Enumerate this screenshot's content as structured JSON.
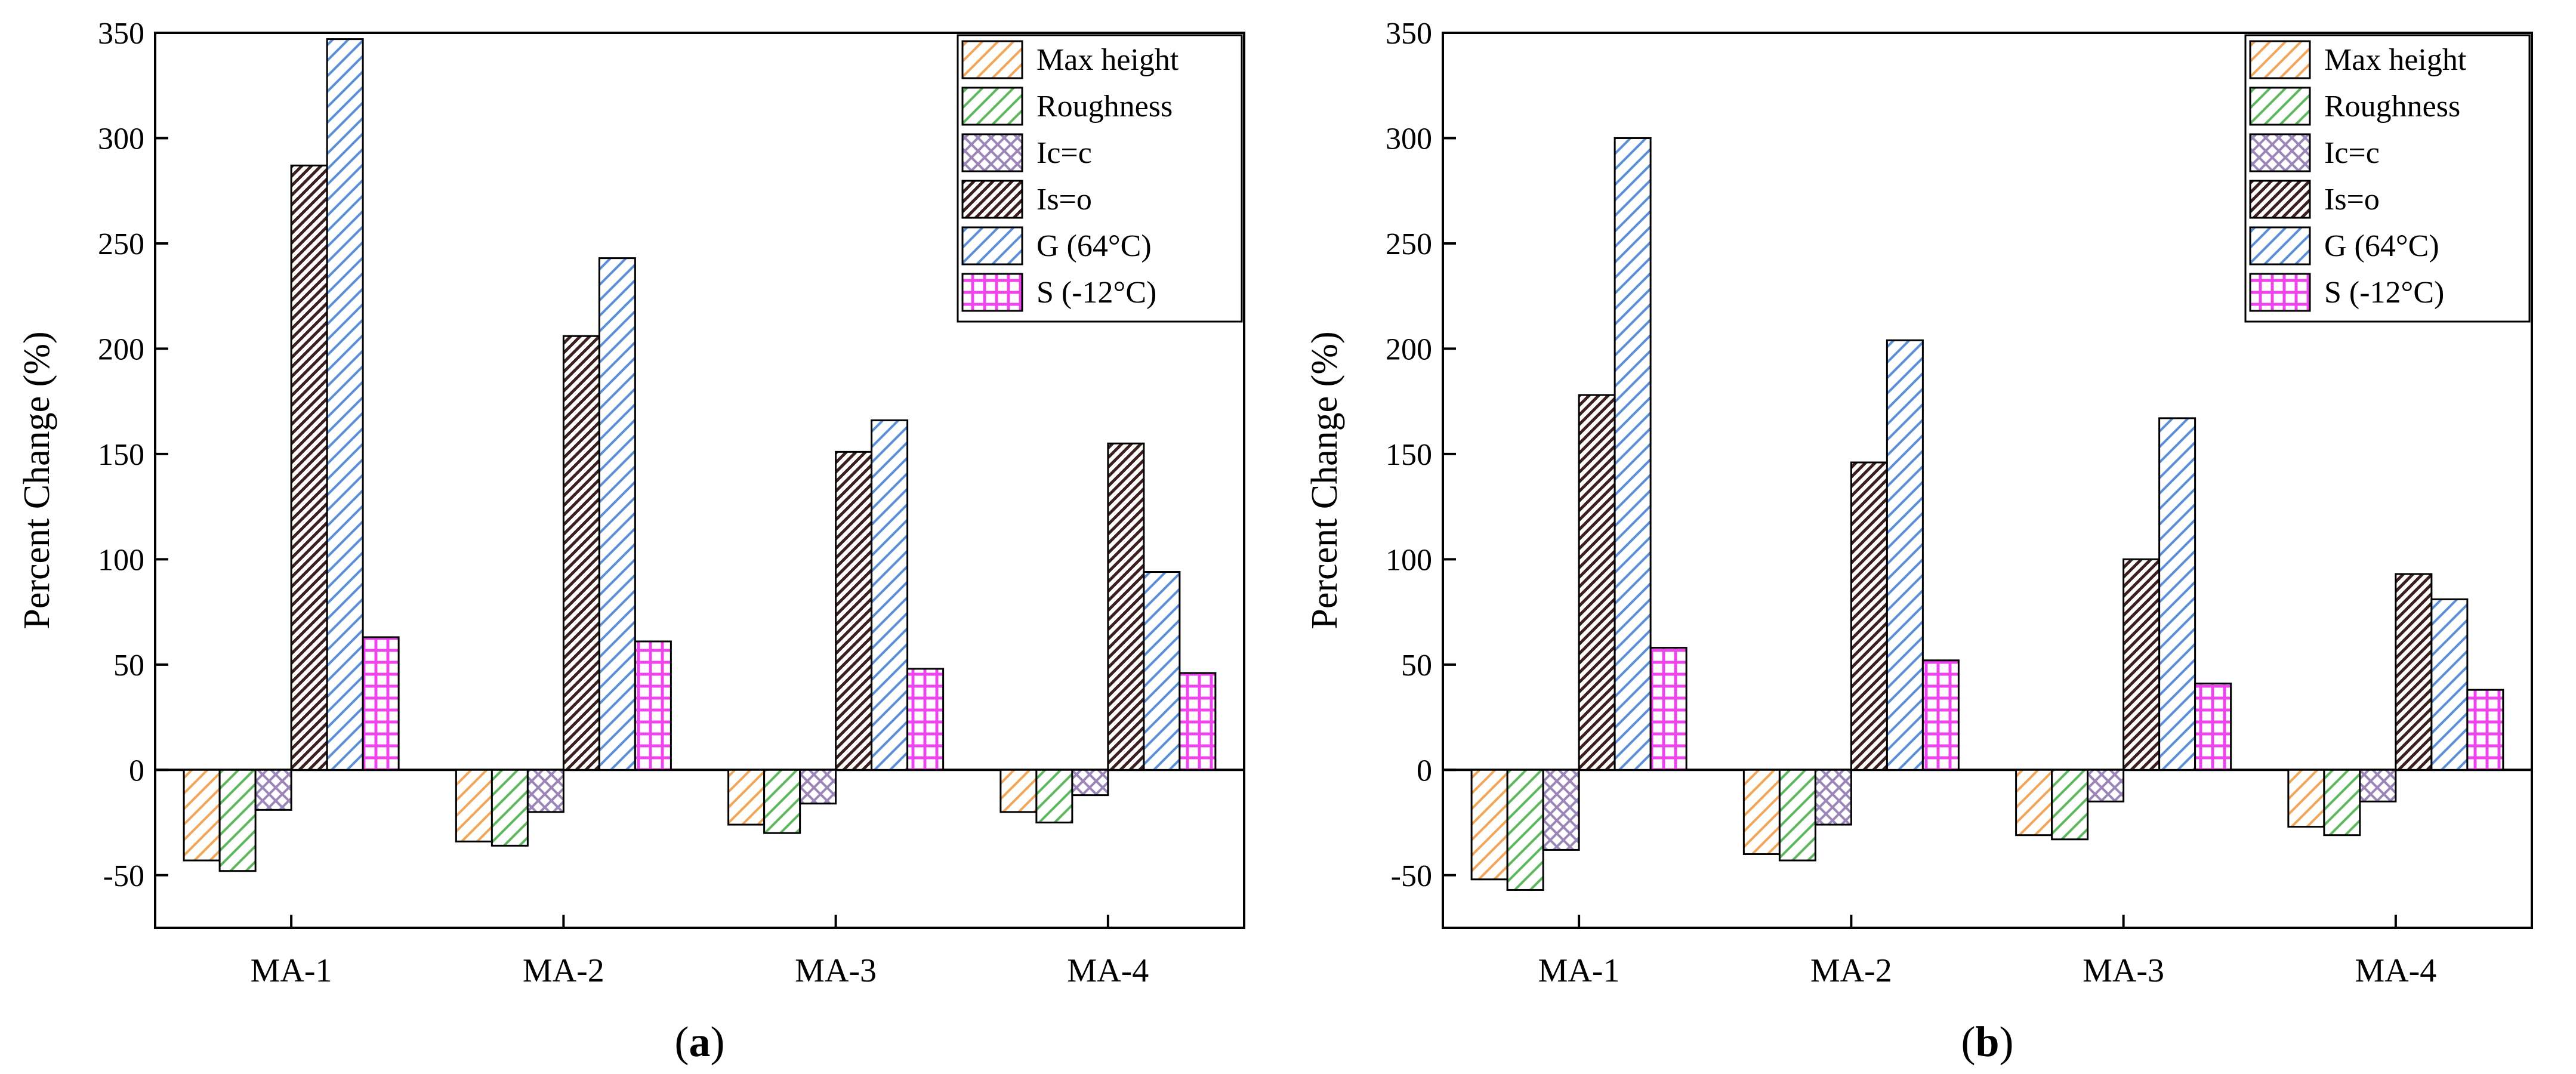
{
  "series_styles": [
    {
      "name": "Max height",
      "color": "#f2a65a",
      "fill": "#fde3c8",
      "pattern": "hatch-right"
    },
    {
      "name": "Roughness",
      "color": "#5cb85c",
      "fill": "#d9f2d9",
      "pattern": "hatch-right"
    },
    {
      "name": "Ic=c",
      "color": "#9a86b8",
      "fill": "#e6def2",
      "pattern": "crosshatch"
    },
    {
      "name": "Is=o",
      "color": "#3a1f1f",
      "fill": "#7a3a3a",
      "pattern": "hatch-right-dense"
    },
    {
      "name": "G (64°C)",
      "color": "#5b8fd8",
      "fill": "#dbe7fa",
      "pattern": "hatch-right"
    },
    {
      "name": "S (-12°C)",
      "color": "#ee44ee",
      "fill": "#fbd2fb",
      "pattern": "grid"
    }
  ],
  "chart_data": [
    {
      "type": "bar",
      "panel": "a",
      "panel_label": "a",
      "title": "",
      "xlabel": "",
      "ylabel": "Percent Change (%)",
      "ylim": [
        -75,
        350
      ],
      "yticks": [
        -50,
        0,
        50,
        100,
        150,
        200,
        250,
        300,
        350
      ],
      "legend_position": "top-right",
      "categories": [
        "MA-1",
        "MA-2",
        "MA-3",
        "MA-4"
      ],
      "series": [
        {
          "name": "Max height",
          "values": [
            -43,
            -34,
            -26,
            -20
          ]
        },
        {
          "name": "Roughness",
          "values": [
            -48,
            -36,
            -30,
            -25
          ]
        },
        {
          "name": "Ic=c",
          "values": [
            -19,
            -20,
            -16,
            -12
          ]
        },
        {
          "name": "Is=o",
          "values": [
            287,
            206,
            151,
            155
          ]
        },
        {
          "name": "G (64°C)",
          "values": [
            347,
            243,
            166,
            94
          ]
        },
        {
          "name": "S (-12°C)",
          "values": [
            63,
            61,
            48,
            46
          ]
        }
      ]
    },
    {
      "type": "bar",
      "panel": "b",
      "panel_label": "b",
      "title": "",
      "xlabel": "",
      "ylabel": "Percent Change (%)",
      "ylim": [
        -75,
        350
      ],
      "yticks": [
        -50,
        0,
        50,
        100,
        150,
        200,
        250,
        300,
        350
      ],
      "legend_position": "top-right",
      "categories": [
        "MA-1",
        "MA-2",
        "MA-3",
        "MA-4"
      ],
      "series": [
        {
          "name": "Max height",
          "values": [
            -52,
            -40,
            -31,
            -27
          ]
        },
        {
          "name": "Roughness",
          "values": [
            -57,
            -43,
            -33,
            -31
          ]
        },
        {
          "name": "Ic=c",
          "values": [
            -38,
            -26,
            -15,
            -15
          ]
        },
        {
          "name": "Is=o",
          "values": [
            178,
            146,
            100,
            93
          ]
        },
        {
          "name": "G (64°C)",
          "values": [
            300,
            204,
            167,
            81
          ]
        },
        {
          "name": "S (-12°C)",
          "values": [
            58,
            52,
            41,
            38
          ]
        }
      ]
    }
  ]
}
